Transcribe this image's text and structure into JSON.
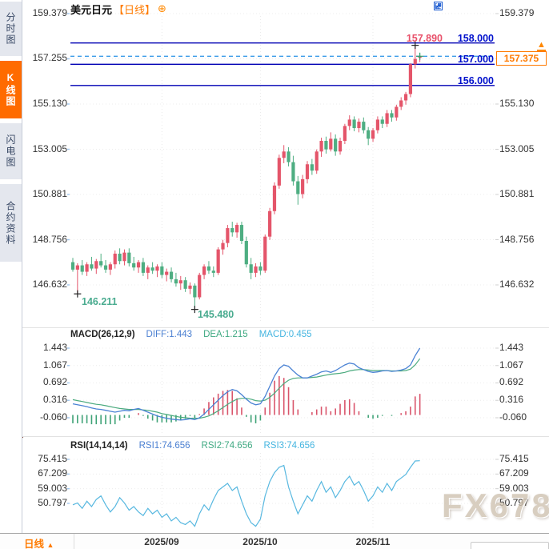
{
  "window": {
    "watermark": "FX678"
  },
  "sidebar": {
    "tabs": [
      {
        "label": "分时图",
        "active": false
      },
      {
        "label": "K线图",
        "active": true
      },
      {
        "label": "闪电图",
        "active": false
      },
      {
        "label": "合约资料",
        "active": false
      }
    ]
  },
  "header": {
    "title": "美元日元",
    "period_tag": "【日线】",
    "gear": "⊕",
    "toolbar_icons": [
      "crosshair",
      "region-stats",
      "trend-line",
      "next-page"
    ]
  },
  "price_axis": {
    "left": [
      "159.379",
      "157.255",
      "155.130",
      "153.005",
      "150.881",
      "148.756",
      "146.632"
    ],
    "right": [
      "159.379",
      "157.255",
      "155.130",
      "153.005",
      "150.881",
      "148.756",
      "146.632"
    ]
  },
  "macd_panel": {
    "title": "MACD(26,12,9)",
    "diff_label": "DIFF:1.443",
    "dea_label": "DEA:1.215",
    "macd_label": "MACD:0.455",
    "axis": [
      "1.443",
      "1.067",
      "0.692",
      "0.316",
      "-0.060"
    ]
  },
  "rsi_panel": {
    "title": "RSI(14,14,14)",
    "rsi1_label": "RSI1:74.656",
    "rsi2_label": "RSI2:74.656",
    "rsi3_label": "RSI3:74.656",
    "axis": [
      "75.415",
      "67.209",
      "59.003",
      "50.797"
    ]
  },
  "bottom_bar": {
    "period_label": "日线",
    "caret": "▲",
    "x_labels": [
      "2025/09",
      "2025/10",
      "2025/11"
    ]
  },
  "colors": {
    "up": "#e4556a",
    "down": "#4eae82",
    "hline": "#0000b4",
    "price_line": "#3d9ce8",
    "accent_orange": "#ff7a00",
    "diff": "#4a82d4",
    "dea": "#4cab7f",
    "hist_up": "#d9556b",
    "hist_down": "#3ea276",
    "rsi": "#58b8e0",
    "grid": "#e9e9e9",
    "marker": "#222",
    "current_marker": "#31a06d"
  },
  "chart_data": {
    "type": "candlestick",
    "symbol": "美元日元",
    "period": "日线",
    "ylim": [
      144.9,
      159.49
    ],
    "x_ticks": [
      {
        "index": 19,
        "label": "2025/09"
      },
      {
        "index": 40,
        "label": "2025/10"
      },
      {
        "index": 64,
        "label": "2025/11"
      }
    ],
    "hlines": [
      {
        "price": 158.0,
        "label": "158.000"
      },
      {
        "price": 157.0,
        "label": "157.000"
      },
      {
        "price": 156.0,
        "label": "156.000"
      }
    ],
    "price_line": {
      "price": 157.375,
      "label": "157.375",
      "arrow": "▲"
    },
    "annotations": [
      {
        "index": 1,
        "type": "low",
        "price": 146.211,
        "label": "146.211"
      },
      {
        "index": 26,
        "type": "low",
        "price": 145.48,
        "label": "145.480"
      },
      {
        "index": 73,
        "type": "high",
        "price": 157.89,
        "label": "157.890"
      }
    ],
    "candles": [
      [
        147.7,
        147.9,
        147.25,
        147.35
      ],
      [
        147.35,
        147.65,
        146.21,
        147.55
      ],
      [
        147.55,
        147.8,
        147.1,
        147.25
      ],
      [
        147.25,
        147.7,
        147.05,
        147.6
      ],
      [
        147.6,
        147.95,
        147.3,
        147.4
      ],
      [
        147.4,
        147.85,
        147.15,
        147.75
      ],
      [
        147.75,
        148.1,
        147.45,
        147.55
      ],
      [
        147.55,
        147.8,
        147.2,
        147.35
      ],
      [
        147.35,
        147.7,
        147.1,
        147.6
      ],
      [
        147.6,
        148.25,
        147.4,
        148.1
      ],
      [
        148.1,
        148.35,
        147.6,
        147.75
      ],
      [
        147.75,
        148.3,
        147.55,
        148.15
      ],
      [
        148.15,
        148.35,
        147.5,
        147.65
      ],
      [
        147.65,
        147.95,
        147.3,
        147.45
      ],
      [
        147.45,
        147.8,
        147.2,
        147.7
      ],
      [
        147.7,
        147.9,
        147.05,
        147.2
      ],
      [
        147.2,
        147.55,
        146.9,
        147.45
      ],
      [
        147.45,
        147.7,
        147.15,
        147.3
      ],
      [
        147.3,
        147.6,
        147.0,
        147.5
      ],
      [
        147.5,
        147.7,
        146.95,
        147.1
      ],
      [
        147.1,
        147.4,
        146.8,
        147.25
      ],
      [
        147.25,
        147.45,
        146.75,
        146.9
      ],
      [
        146.9,
        147.2,
        146.55,
        146.7
      ],
      [
        146.7,
        147.05,
        146.4,
        146.85
      ],
      [
        146.85,
        147.0,
        146.3,
        146.45
      ],
      [
        146.45,
        146.75,
        146.2,
        146.6
      ],
      [
        146.6,
        146.7,
        145.48,
        146.05
      ],
      [
        146.05,
        147.2,
        145.95,
        147.1
      ],
      [
        147.1,
        147.6,
        146.9,
        147.5
      ],
      [
        147.5,
        147.75,
        147.15,
        147.3
      ],
      [
        147.3,
        147.5,
        147.0,
        147.2
      ],
      [
        147.2,
        148.4,
        147.1,
        148.3
      ],
      [
        148.3,
        148.75,
        148.05,
        148.6
      ],
      [
        148.6,
        149.45,
        148.4,
        149.3
      ],
      [
        149.3,
        149.6,
        148.9,
        149.1
      ],
      [
        149.1,
        149.55,
        148.85,
        149.45
      ],
      [
        149.45,
        149.6,
        148.55,
        148.7
      ],
      [
        148.7,
        148.9,
        147.45,
        147.6
      ],
      [
        147.6,
        147.9,
        146.9,
        147.2
      ],
      [
        147.2,
        147.65,
        147.0,
        147.5
      ],
      [
        147.5,
        147.7,
        147.1,
        147.3
      ],
      [
        147.3,
        149.0,
        147.2,
        148.9
      ],
      [
        148.9,
        150.25,
        148.75,
        150.1
      ],
      [
        150.1,
        151.45,
        149.95,
        151.3
      ],
      [
        151.3,
        152.75,
        151.15,
        152.6
      ],
      [
        152.6,
        153.2,
        152.35,
        152.9
      ],
      [
        152.9,
        153.1,
        152.2,
        152.4
      ],
      [
        152.4,
        152.7,
        151.3,
        151.5
      ],
      [
        151.5,
        151.75,
        150.4,
        150.9
      ],
      [
        150.9,
        151.8,
        150.7,
        151.6
      ],
      [
        151.6,
        152.45,
        151.4,
        152.3
      ],
      [
        152.3,
        152.55,
        151.8,
        152.0
      ],
      [
        152.0,
        153.0,
        151.85,
        152.9
      ],
      [
        152.9,
        153.55,
        152.65,
        153.4
      ],
      [
        153.4,
        153.6,
        152.8,
        153.0
      ],
      [
        153.0,
        153.8,
        152.9,
        153.5
      ],
      [
        153.5,
        153.7,
        152.7,
        152.9
      ],
      [
        152.9,
        153.55,
        152.75,
        153.4
      ],
      [
        153.4,
        154.2,
        153.25,
        154.1
      ],
      [
        154.1,
        154.6,
        153.9,
        154.4
      ],
      [
        154.4,
        154.55,
        153.85,
        154.0
      ],
      [
        154.0,
        154.45,
        153.8,
        154.3
      ],
      [
        154.3,
        154.5,
        153.75,
        153.9
      ],
      [
        153.9,
        154.05,
        153.2,
        153.5
      ],
      [
        153.5,
        154.0,
        153.35,
        153.9
      ],
      [
        153.9,
        154.55,
        153.75,
        154.4
      ],
      [
        154.4,
        154.55,
        154.0,
        154.2
      ],
      [
        154.2,
        154.85,
        154.05,
        154.7
      ],
      [
        154.7,
        154.85,
        154.3,
        154.5
      ],
      [
        154.5,
        155.1,
        154.35,
        155.0
      ],
      [
        155.0,
        155.45,
        154.85,
        155.3
      ],
      [
        155.3,
        155.7,
        155.1,
        155.6
      ],
      [
        155.6,
        157.05,
        155.45,
        157.0
      ],
      [
        157.0,
        157.89,
        156.8,
        157.25
      ],
      [
        157.3,
        157.45,
        157.1,
        157.375
      ]
    ],
    "macd": {
      "params": [
        26,
        12,
        9
      ],
      "diff": [
        0.24,
        0.22,
        0.2,
        0.18,
        0.15,
        0.13,
        0.12,
        0.1,
        0.08,
        0.06,
        0.08,
        0.1,
        0.09,
        0.12,
        0.14,
        0.1,
        0.06,
        0.02,
        -0.02,
        -0.05,
        -0.07,
        -0.09,
        -0.1,
        -0.11,
        -0.1,
        -0.08,
        -0.1,
        -0.06,
        0.02,
        0.12,
        0.22,
        0.32,
        0.42,
        0.5,
        0.55,
        0.52,
        0.44,
        0.34,
        0.26,
        0.22,
        0.24,
        0.4,
        0.62,
        0.84,
        1.0,
        1.08,
        1.05,
        0.95,
        0.86,
        0.8,
        0.8,
        0.84,
        0.88,
        0.93,
        0.95,
        0.92,
        0.96,
        1.02,
        1.08,
        1.12,
        1.1,
        1.02,
        0.98,
        0.94,
        0.92,
        0.93,
        0.95,
        0.96,
        0.94,
        0.95,
        0.97,
        1.0,
        1.08,
        1.28,
        1.443
      ],
      "dea": [
        0.33,
        0.31,
        0.29,
        0.27,
        0.25,
        0.23,
        0.22,
        0.2,
        0.18,
        0.16,
        0.14,
        0.13,
        0.12,
        0.12,
        0.12,
        0.11,
        0.1,
        0.08,
        0.06,
        0.03,
        0.01,
        -0.01,
        -0.03,
        -0.05,
        -0.06,
        -0.07,
        -0.07,
        -0.07,
        -0.05,
        -0.02,
        0.03,
        0.09,
        0.16,
        0.23,
        0.29,
        0.34,
        0.36,
        0.36,
        0.34,
        0.31,
        0.3,
        0.32,
        0.38,
        0.47,
        0.58,
        0.68,
        0.75,
        0.79,
        0.8,
        0.8,
        0.8,
        0.81,
        0.82,
        0.84,
        0.86,
        0.88,
        0.89,
        0.9,
        0.92,
        0.95,
        0.97,
        0.98,
        0.98,
        0.97,
        0.96,
        0.96,
        0.96,
        0.96,
        0.95,
        0.95,
        0.95,
        0.96,
        0.99,
        1.08,
        1.215
      ],
      "diff_last": 1.443,
      "dea_last": 1.215,
      "macd_last": 0.455
    },
    "rsi": {
      "params": [
        14,
        14,
        14
      ],
      "values": [
        50,
        51,
        48,
        52,
        49,
        53,
        55,
        50,
        46,
        49,
        54,
        51,
        47,
        49,
        46,
        44,
        48,
        45,
        47,
        43,
        45,
        41,
        43,
        40,
        39,
        41,
        38,
        45,
        50,
        47,
        53,
        58,
        60,
        62,
        58,
        60,
        52,
        45,
        40,
        38,
        42,
        55,
        63,
        68,
        71,
        72,
        60,
        52,
        45,
        50,
        55,
        52,
        58,
        63,
        57,
        60,
        54,
        58,
        63,
        66,
        61,
        63,
        58,
        52,
        55,
        60,
        57,
        62,
        58,
        63,
        65,
        67,
        71,
        74.5,
        74.656
      ],
      "last": 74.656
    }
  }
}
